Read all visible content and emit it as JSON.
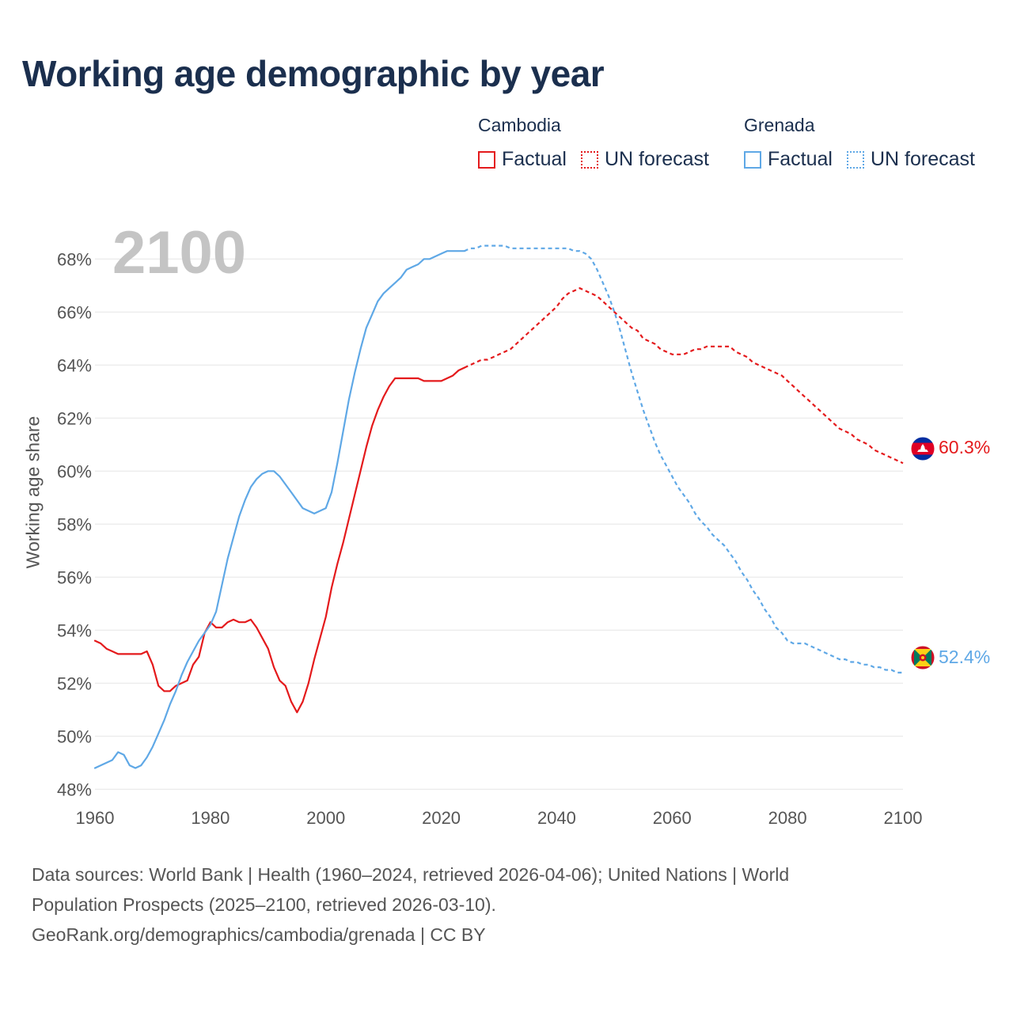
{
  "title": "Working age demographic by year",
  "year_watermark": "2100",
  "legend": {
    "cambodia": {
      "name": "Cambodia",
      "factual": "Factual",
      "forecast": "UN forecast",
      "color": "#e41a1c"
    },
    "grenada": {
      "name": "Grenada",
      "factual": "Factual",
      "forecast": "UN forecast",
      "color": "#5fa8e6"
    }
  },
  "sources": {
    "line1": "Data sources: World Bank | Health (1960–2024, retrieved 2026-04-06); United Nations | World",
    "line2": "Population Prospects (2025–2100, retrieved 2026-03-10).",
    "line3": "GeoRank.org/demographics/cambodia/grenada | CC BY"
  },
  "chart_data": {
    "type": "line",
    "title": "Working age demographic by year",
    "ylabel": "Working age share",
    "xlabel": "",
    "xlim": [
      1960,
      2100
    ],
    "ylim": [
      47.5,
      69.5
    ],
    "x_ticks": [
      1960,
      1980,
      2000,
      2020,
      2040,
      2060,
      2080,
      2100
    ],
    "x_tick_labels": [
      "1960",
      "1980",
      "2000",
      "2020",
      "2040",
      "2060",
      "2080",
      "2100"
    ],
    "y_ticks": [
      48,
      50,
      52,
      54,
      56,
      58,
      60,
      62,
      64,
      66,
      68
    ],
    "y_tick_labels": [
      "48%",
      "50%",
      "52%",
      "54%",
      "56%",
      "58%",
      "60%",
      "62%",
      "64%",
      "66%",
      "68%"
    ],
    "forecast_start": 2024,
    "series": [
      {
        "name": "Cambodia",
        "color": "#e41a1c",
        "end_label": "60.3%",
        "points": [
          [
            1960,
            53.6
          ],
          [
            1961,
            53.5
          ],
          [
            1962,
            53.3
          ],
          [
            1963,
            53.2
          ],
          [
            1964,
            53.1
          ],
          [
            1965,
            53.1
          ],
          [
            1966,
            53.1
          ],
          [
            1967,
            53.1
          ],
          [
            1968,
            53.1
          ],
          [
            1969,
            53.2
          ],
          [
            1970,
            52.7
          ],
          [
            1971,
            51.9
          ],
          [
            1972,
            51.7
          ],
          [
            1973,
            51.7
          ],
          [
            1974,
            51.9
          ],
          [
            1975,
            52.0
          ],
          [
            1976,
            52.1
          ],
          [
            1977,
            52.7
          ],
          [
            1978,
            53.0
          ],
          [
            1979,
            53.9
          ],
          [
            1980,
            54.3
          ],
          [
            1981,
            54.1
          ],
          [
            1982,
            54.1
          ],
          [
            1983,
            54.3
          ],
          [
            1984,
            54.4
          ],
          [
            1985,
            54.3
          ],
          [
            1986,
            54.3
          ],
          [
            1987,
            54.4
          ],
          [
            1988,
            54.1
          ],
          [
            1989,
            53.7
          ],
          [
            1990,
            53.3
          ],
          [
            1991,
            52.6
          ],
          [
            1992,
            52.1
          ],
          [
            1993,
            51.9
          ],
          [
            1994,
            51.3
          ],
          [
            1995,
            50.9
          ],
          [
            1996,
            51.3
          ],
          [
            1997,
            52.0
          ],
          [
            1998,
            52.9
          ],
          [
            1999,
            53.7
          ],
          [
            2000,
            54.5
          ],
          [
            2001,
            55.6
          ],
          [
            2002,
            56.5
          ],
          [
            2003,
            57.3
          ],
          [
            2004,
            58.2
          ],
          [
            2005,
            59.1
          ],
          [
            2006,
            60.0
          ],
          [
            2007,
            60.9
          ],
          [
            2008,
            61.7
          ],
          [
            2009,
            62.3
          ],
          [
            2010,
            62.8
          ],
          [
            2011,
            63.2
          ],
          [
            2012,
            63.5
          ],
          [
            2013,
            63.5
          ],
          [
            2014,
            63.5
          ],
          [
            2015,
            63.5
          ],
          [
            2016,
            63.5
          ],
          [
            2017,
            63.4
          ],
          [
            2018,
            63.4
          ],
          [
            2019,
            63.4
          ],
          [
            2020,
            63.4
          ],
          [
            2021,
            63.5
          ],
          [
            2022,
            63.6
          ],
          [
            2023,
            63.8
          ],
          [
            2024,
            63.9
          ],
          [
            2025,
            64.0
          ],
          [
            2026,
            64.1
          ],
          [
            2027,
            64.2
          ],
          [
            2028,
            64.2
          ],
          [
            2029,
            64.3
          ],
          [
            2030,
            64.4
          ],
          [
            2031,
            64.5
          ],
          [
            2032,
            64.6
          ],
          [
            2033,
            64.8
          ],
          [
            2034,
            65.0
          ],
          [
            2035,
            65.2
          ],
          [
            2036,
            65.4
          ],
          [
            2037,
            65.6
          ],
          [
            2038,
            65.8
          ],
          [
            2039,
            66.0
          ],
          [
            2040,
            66.2
          ],
          [
            2041,
            66.5
          ],
          [
            2042,
            66.7
          ],
          [
            2043,
            66.8
          ],
          [
            2044,
            66.9
          ],
          [
            2045,
            66.8
          ],
          [
            2046,
            66.7
          ],
          [
            2047,
            66.6
          ],
          [
            2048,
            66.4
          ],
          [
            2049,
            66.2
          ],
          [
            2050,
            66.0
          ],
          [
            2051,
            65.8
          ],
          [
            2052,
            65.6
          ],
          [
            2053,
            65.4
          ],
          [
            2054,
            65.3
          ],
          [
            2055,
            65.0
          ],
          [
            2056,
            64.9
          ],
          [
            2057,
            64.8
          ],
          [
            2058,
            64.6
          ],
          [
            2059,
            64.5
          ],
          [
            2060,
            64.4
          ],
          [
            2061,
            64.4
          ],
          [
            2062,
            64.4
          ],
          [
            2063,
            64.5
          ],
          [
            2064,
            64.6
          ],
          [
            2065,
            64.6
          ],
          [
            2066,
            64.7
          ],
          [
            2067,
            64.7
          ],
          [
            2068,
            64.7
          ],
          [
            2069,
            64.7
          ],
          [
            2070,
            64.7
          ],
          [
            2071,
            64.5
          ],
          [
            2072,
            64.4
          ],
          [
            2073,
            64.3
          ],
          [
            2074,
            64.1
          ],
          [
            2075,
            64.0
          ],
          [
            2076,
            63.9
          ],
          [
            2077,
            63.8
          ],
          [
            2078,
            63.7
          ],
          [
            2079,
            63.6
          ],
          [
            2080,
            63.4
          ],
          [
            2081,
            63.2
          ],
          [
            2082,
            63.0
          ],
          [
            2083,
            62.8
          ],
          [
            2084,
            62.6
          ],
          [
            2085,
            62.4
          ],
          [
            2086,
            62.2
          ],
          [
            2087,
            62.0
          ],
          [
            2088,
            61.8
          ],
          [
            2089,
            61.6
          ],
          [
            2090,
            61.5
          ],
          [
            2091,
            61.4
          ],
          [
            2092,
            61.2
          ],
          [
            2093,
            61.1
          ],
          [
            2094,
            61.0
          ],
          [
            2095,
            60.8
          ],
          [
            2096,
            60.7
          ],
          [
            2097,
            60.6
          ],
          [
            2098,
            60.5
          ],
          [
            2099,
            60.4
          ],
          [
            2100,
            60.3
          ]
        ]
      },
      {
        "name": "Grenada",
        "color": "#5fa8e6",
        "end_label": "52.4%",
        "points": [
          [
            1960,
            48.8
          ],
          [
            1961,
            48.9
          ],
          [
            1962,
            49.0
          ],
          [
            1963,
            49.1
          ],
          [
            1964,
            49.4
          ],
          [
            1965,
            49.3
          ],
          [
            1966,
            48.9
          ],
          [
            1967,
            48.8
          ],
          [
            1968,
            48.9
          ],
          [
            1969,
            49.2
          ],
          [
            1970,
            49.6
          ],
          [
            1971,
            50.1
          ],
          [
            1972,
            50.6
          ],
          [
            1973,
            51.2
          ],
          [
            1974,
            51.7
          ],
          [
            1975,
            52.3
          ],
          [
            1976,
            52.8
          ],
          [
            1977,
            53.2
          ],
          [
            1978,
            53.6
          ],
          [
            1979,
            53.9
          ],
          [
            1980,
            54.2
          ],
          [
            1981,
            54.7
          ],
          [
            1982,
            55.7
          ],
          [
            1983,
            56.7
          ],
          [
            1984,
            57.5
          ],
          [
            1985,
            58.3
          ],
          [
            1986,
            58.9
          ],
          [
            1987,
            59.4
          ],
          [
            1988,
            59.7
          ],
          [
            1989,
            59.9
          ],
          [
            1990,
            60.0
          ],
          [
            1991,
            60.0
          ],
          [
            1992,
            59.8
          ],
          [
            1993,
            59.5
          ],
          [
            1994,
            59.2
          ],
          [
            1995,
            58.9
          ],
          [
            1996,
            58.6
          ],
          [
            1997,
            58.5
          ],
          [
            1998,
            58.4
          ],
          [
            1999,
            58.5
          ],
          [
            2000,
            58.6
          ],
          [
            2001,
            59.2
          ],
          [
            2002,
            60.3
          ],
          [
            2003,
            61.5
          ],
          [
            2004,
            62.7
          ],
          [
            2005,
            63.7
          ],
          [
            2006,
            64.6
          ],
          [
            2007,
            65.4
          ],
          [
            2008,
            65.9
          ],
          [
            2009,
            66.4
          ],
          [
            2010,
            66.7
          ],
          [
            2011,
            66.9
          ],
          [
            2012,
            67.1
          ],
          [
            2013,
            67.3
          ],
          [
            2014,
            67.6
          ],
          [
            2015,
            67.7
          ],
          [
            2016,
            67.8
          ],
          [
            2017,
            68.0
          ],
          [
            2018,
            68.0
          ],
          [
            2019,
            68.1
          ],
          [
            2020,
            68.2
          ],
          [
            2021,
            68.3
          ],
          [
            2022,
            68.3
          ],
          [
            2023,
            68.3
          ],
          [
            2024,
            68.3
          ],
          [
            2025,
            68.4
          ],
          [
            2026,
            68.4
          ],
          [
            2027,
            68.5
          ],
          [
            2028,
            68.5
          ],
          [
            2029,
            68.5
          ],
          [
            2030,
            68.5
          ],
          [
            2031,
            68.5
          ],
          [
            2032,
            68.4
          ],
          [
            2033,
            68.4
          ],
          [
            2034,
            68.4
          ],
          [
            2035,
            68.4
          ],
          [
            2036,
            68.4
          ],
          [
            2037,
            68.4
          ],
          [
            2038,
            68.4
          ],
          [
            2039,
            68.4
          ],
          [
            2040,
            68.4
          ],
          [
            2041,
            68.4
          ],
          [
            2042,
            68.4
          ],
          [
            2043,
            68.3
          ],
          [
            2044,
            68.3
          ],
          [
            2045,
            68.2
          ],
          [
            2046,
            68.0
          ],
          [
            2047,
            67.6
          ],
          [
            2048,
            67.1
          ],
          [
            2049,
            66.6
          ],
          [
            2050,
            66.0
          ],
          [
            2051,
            65.3
          ],
          [
            2052,
            64.5
          ],
          [
            2053,
            63.7
          ],
          [
            2054,
            63.0
          ],
          [
            2055,
            62.3
          ],
          [
            2056,
            61.7
          ],
          [
            2057,
            61.1
          ],
          [
            2058,
            60.6
          ],
          [
            2059,
            60.2
          ],
          [
            2060,
            59.8
          ],
          [
            2061,
            59.4
          ],
          [
            2062,
            59.1
          ],
          [
            2063,
            58.8
          ],
          [
            2064,
            58.4
          ],
          [
            2065,
            58.1
          ],
          [
            2066,
            57.9
          ],
          [
            2067,
            57.6
          ],
          [
            2068,
            57.4
          ],
          [
            2069,
            57.2
          ],
          [
            2070,
            56.9
          ],
          [
            2071,
            56.6
          ],
          [
            2072,
            56.2
          ],
          [
            2073,
            55.9
          ],
          [
            2074,
            55.5
          ],
          [
            2075,
            55.2
          ],
          [
            2076,
            54.8
          ],
          [
            2077,
            54.5
          ],
          [
            2078,
            54.1
          ],
          [
            2079,
            53.9
          ],
          [
            2080,
            53.6
          ],
          [
            2081,
            53.5
          ],
          [
            2082,
            53.5
          ],
          [
            2083,
            53.5
          ],
          [
            2084,
            53.4
          ],
          [
            2085,
            53.3
          ],
          [
            2086,
            53.2
          ],
          [
            2087,
            53.1
          ],
          [
            2088,
            53.0
          ],
          [
            2089,
            52.9
          ],
          [
            2090,
            52.9
          ],
          [
            2091,
            52.8
          ],
          [
            2092,
            52.8
          ],
          [
            2093,
            52.7
          ],
          [
            2094,
            52.7
          ],
          [
            2095,
            52.6
          ],
          [
            2096,
            52.6
          ],
          [
            2097,
            52.5
          ],
          [
            2098,
            52.5
          ],
          [
            2099,
            52.4
          ],
          [
            2100,
            52.4
          ]
        ]
      }
    ]
  }
}
